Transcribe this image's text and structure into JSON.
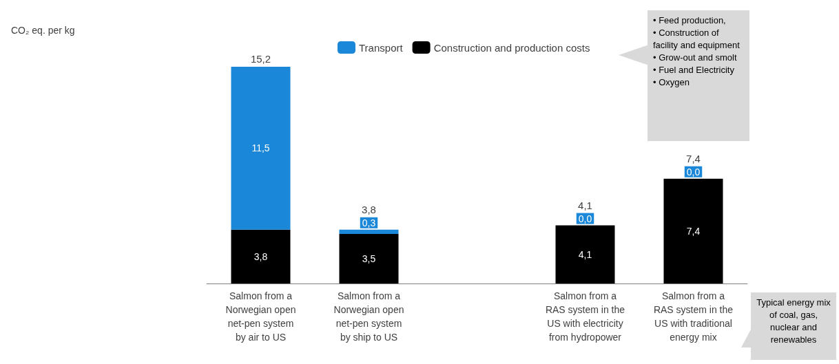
{
  "chart_data": {
    "type": "bar",
    "stacked": true,
    "categories": [
      "Salmon from a\nNorwegian open\nnet-pen system\nby air to US",
      "Salmon from a\nNorwegian open\nnet-pen system\nby ship to US",
      null,
      "Salmon from a\nRAS system in the\nUS with electricity\nfrom hydropower",
      "Salmon from a\nRAS system in the\nUS with traditional\nenergy mix"
    ],
    "series": [
      {
        "name": "Construction and production costs",
        "color": "#000000",
        "values": [
          3.8,
          3.5,
          null,
          4.1,
          7.4
        ],
        "value_labels": [
          "3,8",
          "3,5",
          null,
          "4,1",
          "7,4"
        ]
      },
      {
        "name": "Transport",
        "color": "#1a87d9",
        "values": [
          11.5,
          0.3,
          null,
          0.0,
          0.0
        ],
        "value_labels": [
          "11,5",
          "0,3",
          null,
          "0,0",
          "0,0"
        ]
      }
    ],
    "totals": [
      "15,2",
      "3,8",
      null,
      "4,1",
      "7,4"
    ],
    "legend": "top",
    "tick_labels": "x",
    "annotations": [
      "CO₂ eq. per kg",
      "• Feed production,\n• Construction of facility and equipment\n• Grow-out and smolt\n• Fuel and Electricity\n• Oxygen",
      "Typical energy mix of coal, gas, nuclear and renewables"
    ]
  }
}
